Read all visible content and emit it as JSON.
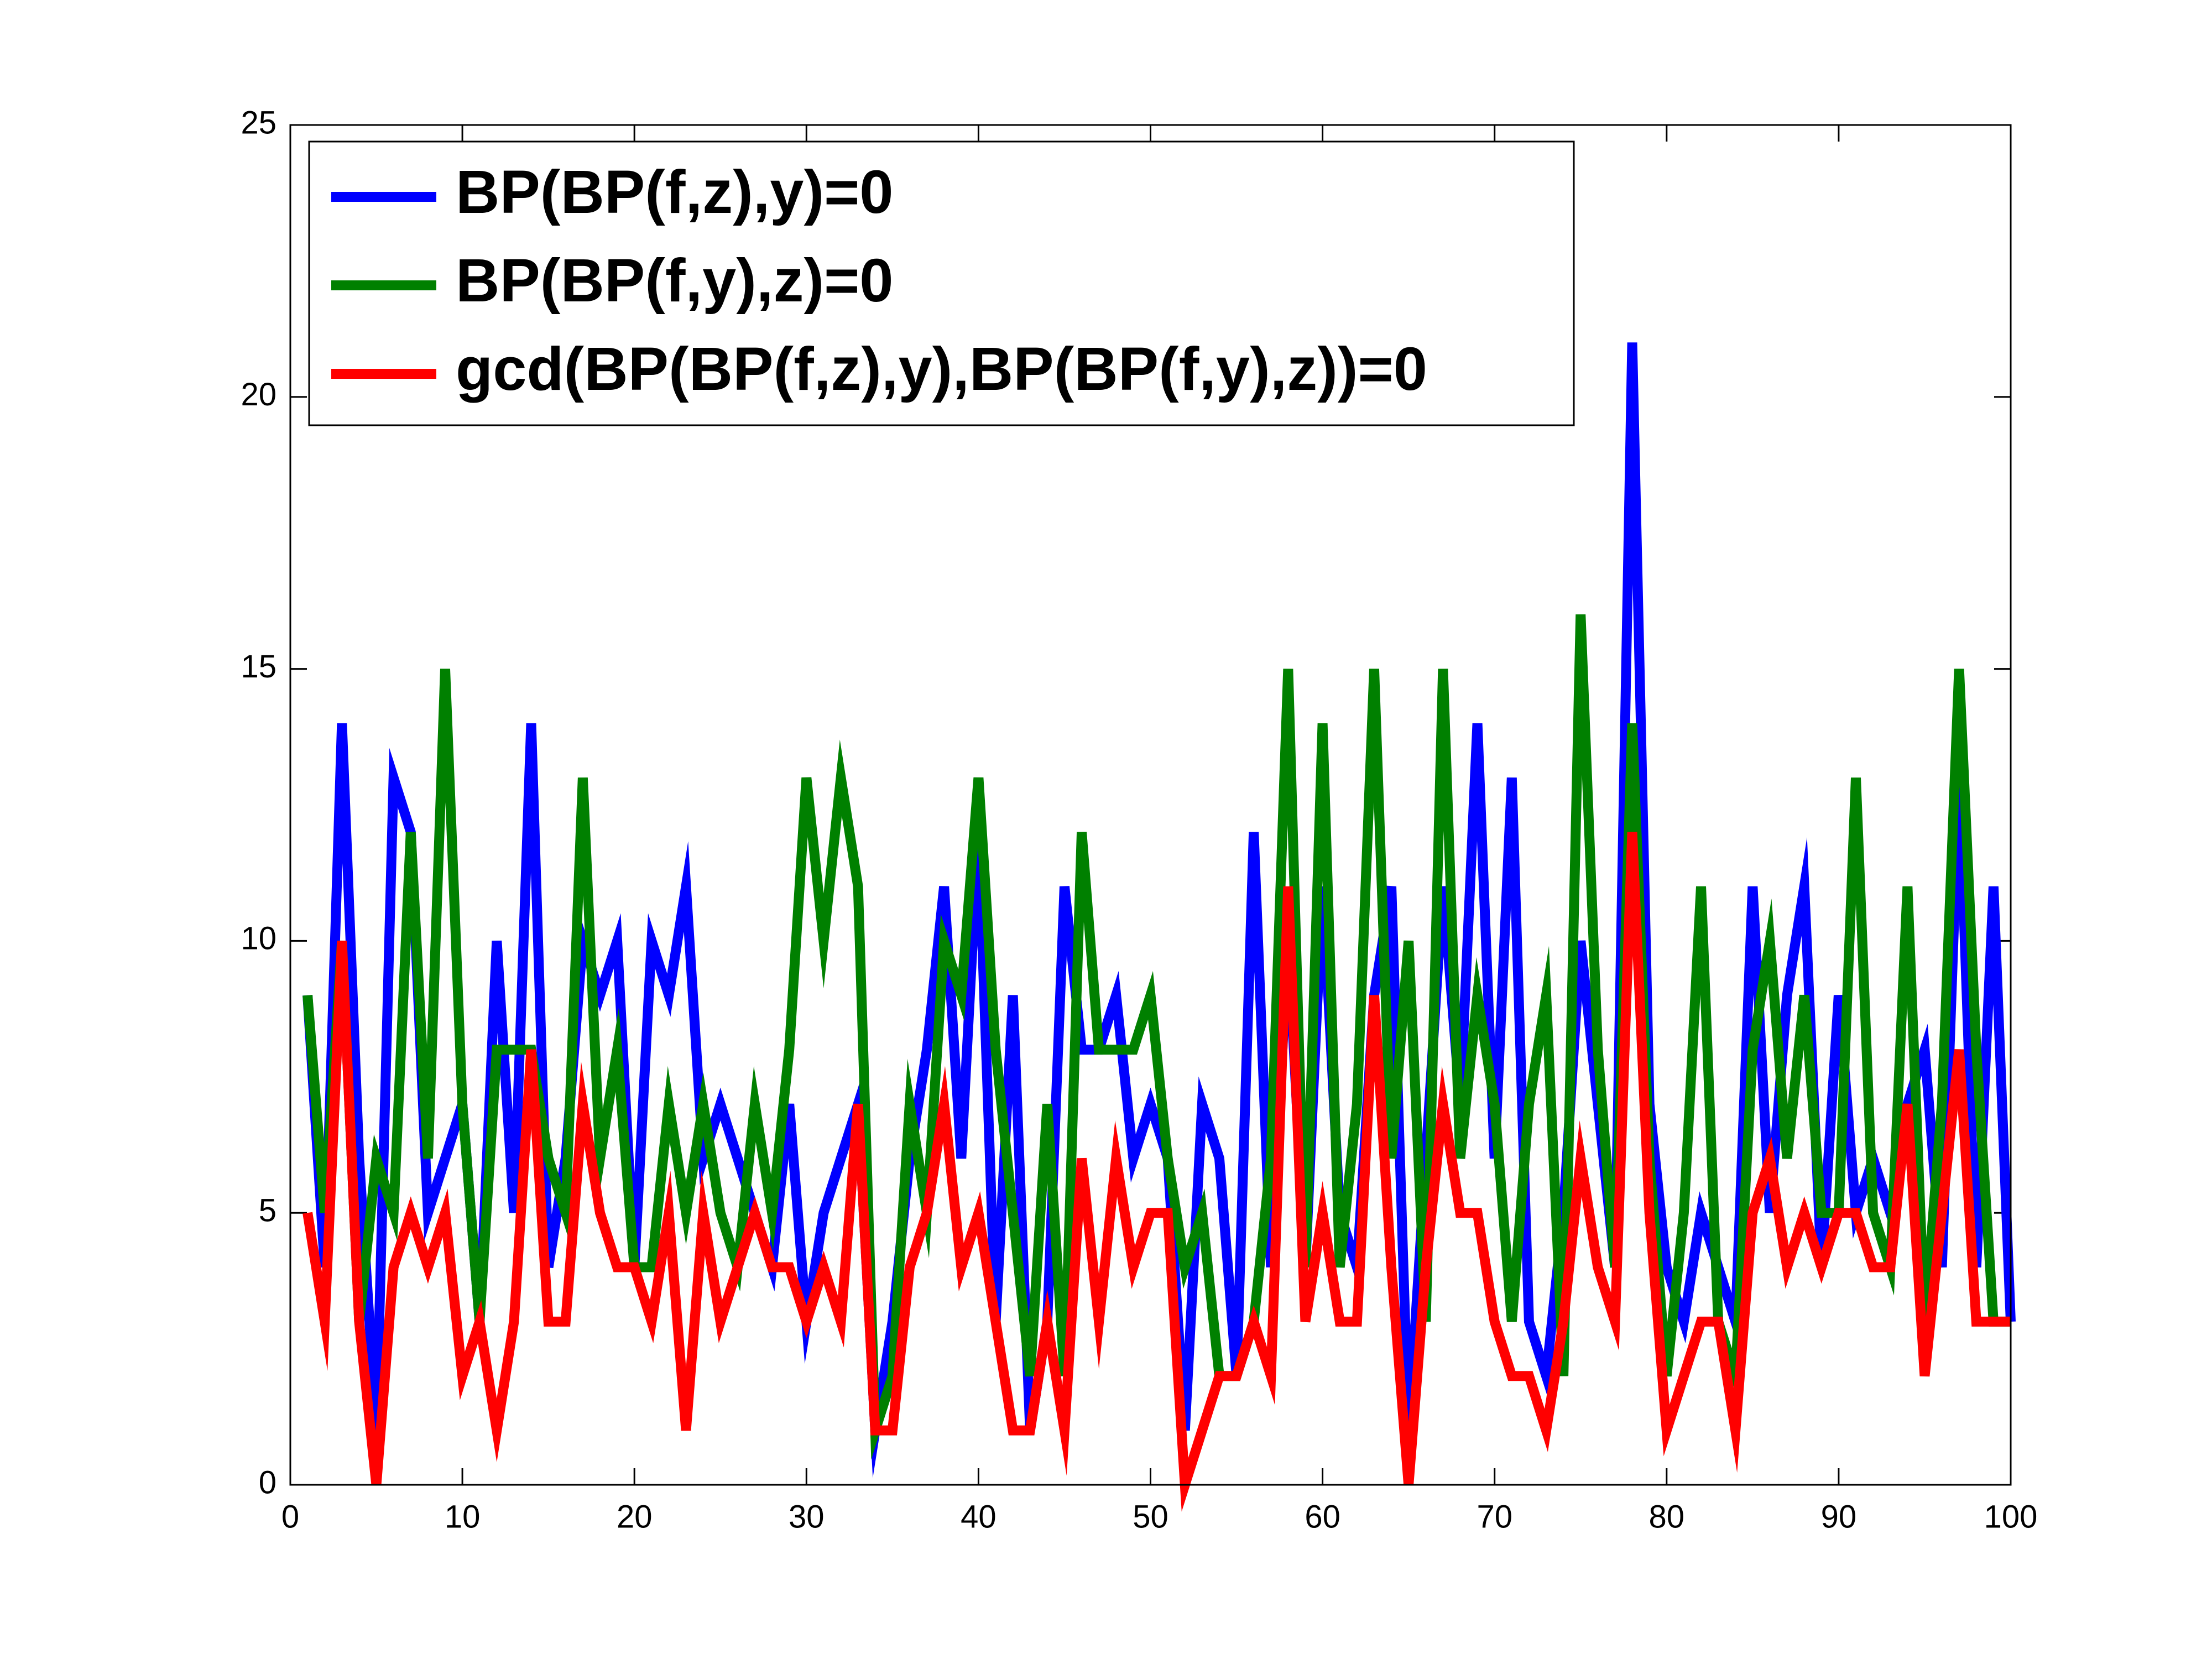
{
  "chart_data": {
    "type": "line",
    "x": [
      1,
      2,
      3,
      4,
      5,
      6,
      7,
      8,
      9,
      10,
      11,
      12,
      13,
      14,
      15,
      16,
      17,
      18,
      19,
      20,
      21,
      22,
      23,
      24,
      25,
      26,
      27,
      28,
      29,
      30,
      31,
      32,
      33,
      34,
      35,
      36,
      37,
      38,
      39,
      40,
      41,
      42,
      43,
      44,
      45,
      46,
      47,
      48,
      49,
      50,
      51,
      52,
      53,
      54,
      55,
      56,
      57,
      58,
      59,
      60,
      61,
      62,
      63,
      64,
      65,
      66,
      67,
      68,
      69,
      70,
      71,
      72,
      73,
      74,
      75,
      76,
      77,
      78,
      79,
      80,
      81,
      82,
      83,
      84,
      85,
      86,
      87,
      88,
      89,
      90,
      91,
      92,
      93,
      94,
      95,
      96,
      97,
      98,
      99,
      100
    ],
    "series": [
      {
        "name": "BP(BP(f,z),y)=0",
        "color": "#0000ff",
        "values": [
          9,
          4,
          14,
          6,
          1,
          13,
          12,
          5,
          6,
          7,
          3,
          10,
          5,
          14,
          4,
          6,
          10,
          9,
          10,
          4,
          10,
          9,
          11,
          6,
          7,
          6,
          5,
          4,
          7,
          3,
          5,
          6,
          7,
          1,
          3,
          6,
          8,
          11,
          6,
          12,
          3,
          9,
          1,
          3,
          11,
          8,
          8,
          9,
          6,
          7,
          6,
          1,
          7,
          6,
          2,
          12,
          4,
          10,
          4,
          11,
          5,
          4,
          9,
          11,
          1,
          6,
          11,
          7,
          14,
          6,
          13,
          3,
          2,
          5,
          10,
          7,
          4,
          21,
          7,
          4,
          3,
          5,
          4,
          3,
          11,
          5,
          9,
          11,
          4,
          9,
          5,
          6,
          5,
          7,
          8,
          4,
          13,
          4,
          11,
          3
        ]
      },
      {
        "name": "BP(BP(f,y),z)=0",
        "color": "#008000",
        "values": [
          9,
          5,
          10,
          3,
          6,
          5,
          12,
          6,
          15,
          7,
          3,
          8,
          8,
          8,
          6,
          5,
          13,
          6,
          8,
          4,
          4,
          7,
          5,
          7,
          5,
          4,
          7,
          5,
          8,
          13,
          10,
          13,
          11,
          1,
          2,
          7,
          5,
          10,
          9,
          13,
          8,
          5,
          2,
          7,
          2,
          12,
          8,
          8,
          8,
          9,
          6,
          4,
          5,
          2,
          2,
          3,
          6,
          15,
          4,
          14,
          4,
          7,
          15,
          6,
          10,
          3,
          15,
          6,
          9,
          7,
          3,
          7,
          9,
          2,
          16,
          8,
          4,
          14,
          6,
          2,
          5,
          11,
          3,
          2,
          8,
          10,
          6,
          9,
          5,
          5,
          13,
          5,
          4,
          11,
          3,
          7,
          15,
          8,
          3,
          3
        ]
      },
      {
        "name": "gcd(BP(BP(f,z),y),BP(BP(f,y),z))=0",
        "color": "#ff0000",
        "values": [
          5,
          3,
          10,
          3,
          0,
          4,
          5,
          4,
          5,
          2,
          3,
          1,
          3,
          8,
          3,
          3,
          7,
          5,
          4,
          4,
          3,
          5,
          1,
          5,
          3,
          4,
          5,
          4,
          4,
          3,
          4,
          3,
          7,
          1,
          1,
          4,
          5,
          7,
          4,
          5,
          3,
          1,
          1,
          3,
          1,
          6,
          3,
          6,
          4,
          5,
          5,
          0,
          1,
          2,
          2,
          3,
          2,
          11,
          3,
          5,
          3,
          3,
          9,
          4,
          0,
          4,
          7,
          5,
          5,
          3,
          2,
          2,
          1,
          3,
          6,
          4,
          3,
          12,
          5,
          1,
          2,
          3,
          3,
          1,
          5,
          6,
          4,
          5,
          4,
          5,
          5,
          4,
          4,
          7,
          2,
          5,
          8,
          3,
          3,
          3
        ]
      }
    ],
    "xlim": [
      0,
      100
    ],
    "xticks": [
      0,
      10,
      20,
      30,
      40,
      50,
      60,
      70,
      80,
      90,
      100
    ],
    "ylim": [
      0,
      25
    ],
    "yticks": [
      0,
      5,
      10,
      15,
      20,
      25
    ],
    "legend": "northwest"
  }
}
